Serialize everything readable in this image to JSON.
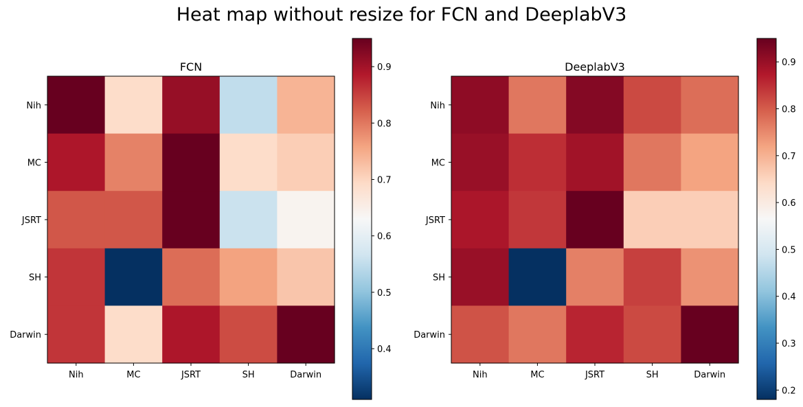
{
  "suptitle": "Heat map without resize for FCN and DeeplabV3",
  "chart_data": [
    {
      "type": "heatmap",
      "title": "FCN",
      "colormap": "RdBu_r",
      "x_categories": [
        "Nih",
        "MC",
        "JSRT",
        "SH",
        "Darwin"
      ],
      "y_categories": [
        "Nih",
        "MC",
        "JSRT",
        "SH",
        "Darwin"
      ],
      "values": [
        [
          0.95,
          0.69,
          0.91,
          0.55,
          0.74
        ],
        [
          0.89,
          0.79,
          0.95,
          0.69,
          0.71
        ],
        [
          0.83,
          0.83,
          0.95,
          0.56,
          0.64
        ],
        [
          0.86,
          0.31,
          0.81,
          0.76,
          0.72
        ],
        [
          0.86,
          0.69,
          0.89,
          0.84,
          0.95
        ]
      ],
      "vmin": 0.31,
      "vmax": 0.95,
      "colorbar_ticks": [
        0.4,
        0.5,
        0.6,
        0.7,
        0.8,
        0.9
      ]
    },
    {
      "type": "heatmap",
      "title": "DeeplabV3",
      "colormap": "RdBu_r",
      "x_categories": [
        "Nih",
        "MC",
        "JSRT",
        "SH",
        "Darwin"
      ],
      "y_categories": [
        "Nih",
        "MC",
        "JSRT",
        "SH",
        "Darwin"
      ],
      "values": [
        [
          0.91,
          0.77,
          0.92,
          0.82,
          0.78
        ],
        [
          0.9,
          0.85,
          0.89,
          0.77,
          0.72
        ],
        [
          0.88,
          0.84,
          0.95,
          0.66,
          0.66
        ],
        [
          0.9,
          0.18,
          0.76,
          0.83,
          0.74
        ],
        [
          0.81,
          0.77,
          0.86,
          0.82,
          0.95
        ]
      ],
      "vmin": 0.18,
      "vmax": 0.95,
      "colorbar_ticks": [
        0.2,
        0.3,
        0.4,
        0.5,
        0.6,
        0.7,
        0.8,
        0.9
      ]
    }
  ]
}
